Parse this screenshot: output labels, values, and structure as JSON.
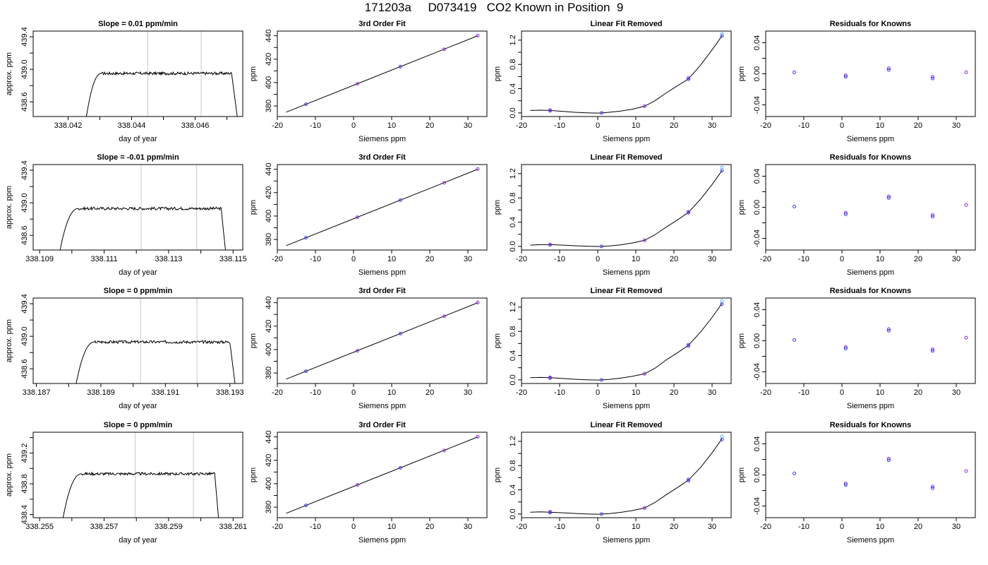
{
  "title": "171203a     D073419   CO2 Known in Position  9",
  "colors": {
    "trace": "#000000",
    "guide": "#c8c8c8",
    "point_a": "#3b3bff",
    "point_b": "#8a2be2",
    "point_c": "#56b4e9",
    "fit_line": "#000000"
  },
  "chart_data": [
    {
      "type": "line",
      "title": "Slope =  0.01  ppm/min",
      "xlabel": "day of year",
      "ylabel": "approx. ppm",
      "xlim": [
        338.0409,
        338.0475
      ],
      "ylim": [
        438.42,
        439.47
      ],
      "xticks": [
        338.042,
        338.043,
        338.044,
        338.045,
        338.046,
        338.047
      ],
      "xtick_labels": [
        "338.042",
        "",
        "338.044",
        "",
        "338.046",
        ""
      ],
      "yticks": [
        438.6,
        438.8,
        439.0,
        439.2,
        439.4
      ],
      "ytick_labels": [
        "438.6",
        "",
        "439.0",
        "",
        "439.4"
      ],
      "vlines": [
        338.04451,
        338.04619
      ],
      "rise_start": 338.04255,
      "plateau_start": 338.04305,
      "plateau_end": 338.04715,
      "fall_end": 338.04735,
      "plateau_level": 438.95,
      "bottom": 438.35
    },
    {
      "type": "line",
      "title": "Slope =  -0.01  ppm/min",
      "xlabel": "day of year",
      "ylabel": "approx. ppm",
      "xlim": [
        338.1088,
        338.1153
      ],
      "ylim": [
        438.42,
        439.47
      ],
      "xticks": [
        338.109,
        338.11,
        338.111,
        338.112,
        338.113,
        338.114,
        338.115
      ],
      "xtick_labels": [
        "338.109",
        "",
        "338.111",
        "",
        "338.113",
        "",
        "338.115"
      ],
      "yticks": [
        438.6,
        438.8,
        439.0,
        439.2,
        439.4
      ],
      "ytick_labels": [
        "438.6",
        "",
        "439.0",
        "",
        "439.4"
      ],
      "vlines": [
        338.11215,
        338.11387
      ],
      "rise_start": 338.1096,
      "plateau_start": 338.1102,
      "plateau_end": 338.11463,
      "fall_end": 338.11478,
      "plateau_level": 438.93,
      "bottom": 438.35
    },
    {
      "type": "line",
      "title": "Slope =  0  ppm/min",
      "xlabel": "day of year",
      "ylabel": "approx. ppm",
      "xlim": [
        338.1869,
        338.1934
      ],
      "ylim": [
        438.42,
        439.47
      ],
      "xticks": [
        338.187,
        338.188,
        338.189,
        338.19,
        338.191,
        338.192,
        338.193
      ],
      "xtick_labels": [
        "338.187",
        "",
        "338.189",
        "",
        "338.191",
        "",
        "338.193"
      ],
      "yticks": [
        438.6,
        438.8,
        439.0,
        439.2,
        439.4
      ],
      "ytick_labels": [
        "438.6",
        "",
        "439.0",
        "",
        "439.4"
      ],
      "vlines": [
        338.19023,
        338.19198
      ],
      "rise_start": 338.1882,
      "plateau_start": 338.1888,
      "plateau_end": 338.193,
      "fall_end": 338.19318,
      "plateau_level": 438.93,
      "bottom": 438.35
    },
    {
      "type": "line",
      "title": "Slope =  0  ppm/min",
      "xlabel": "day of year",
      "ylabel": "approx. ppm",
      "xlim": [
        338.2548,
        338.2613
      ],
      "ylim": [
        438.36,
        439.47
      ],
      "xticks": [
        338.255,
        338.256,
        338.257,
        338.258,
        338.259,
        338.26,
        338.261
      ],
      "xtick_labels": [
        "338.255",
        "",
        "338.257",
        "",
        "338.259",
        "",
        "338.261"
      ],
      "yticks": [
        438.4,
        438.6,
        438.8,
        439.0,
        439.2,
        439.4
      ],
      "ytick_labels": [
        "438.4",
        "",
        "438.8",
        "",
        "439.2",
        ""
      ],
      "vlines": [
        338.25796,
        338.25977
      ],
      "rise_start": 338.2557,
      "plateau_start": 338.2563,
      "plateau_end": 338.26043,
      "fall_end": 338.26056,
      "plateau_level": 438.93,
      "bottom": 438.3
    },
    {
      "type": "scatter",
      "title": "3rd Order Fit",
      "xlabel": "Siemens ppm",
      "ylabel": "ppm",
      "xlim": [
        -20,
        35
      ],
      "ylim": [
        371,
        444
      ],
      "xticks": [
        -20,
        -10,
        0,
        10,
        20,
        30
      ],
      "xtick_labels": [
        "-20",
        "-10",
        "0",
        "10",
        "20",
        "30"
      ],
      "yticks": [
        380,
        390,
        400,
        410,
        420,
        430,
        440
      ],
      "ytick_labels": [
        "380",
        "",
        "400",
        "",
        "420",
        "",
        "440"
      ],
      "points": {
        "x": [
          -12.5,
          1.0,
          12.3,
          23.8,
          32.6
        ],
        "y": [
          381.5,
          399.0,
          413.6,
          428.4,
          440.2
        ]
      },
      "fit": {
        "slope": 1.2975,
        "intercept": 397.7,
        "x0": -17.7,
        "x1": 32.6
      }
    },
    {
      "type": "scatter",
      "title": "3rd Order Fit",
      "xlabel": "Siemens ppm",
      "ylabel": "ppm",
      "xlim": [
        -20,
        35
      ],
      "ylim": [
        371,
        444
      ],
      "xticks": [
        -20,
        -10,
        0,
        10,
        20,
        30
      ],
      "xtick_labels": [
        "-20",
        "-10",
        "0",
        "10",
        "20",
        "30"
      ],
      "yticks": [
        380,
        390,
        400,
        410,
        420,
        430,
        440
      ],
      "ytick_labels": [
        "380",
        "",
        "400",
        "",
        "420",
        "",
        "440"
      ],
      "points": {
        "x": [
          -12.5,
          1.0,
          12.3,
          23.8,
          32.6
        ],
        "y": [
          381.5,
          399.0,
          413.6,
          428.4,
          440.2
        ]
      },
      "fit": {
        "slope": 1.2975,
        "intercept": 397.7,
        "x0": -17.7,
        "x1": 32.6
      }
    },
    {
      "type": "scatter",
      "title": "3rd Order Fit",
      "xlabel": "Siemens ppm",
      "ylabel": "ppm",
      "xlim": [
        -20,
        35
      ],
      "ylim": [
        371,
        444
      ],
      "xticks": [
        -20,
        -10,
        0,
        10,
        20,
        30
      ],
      "xtick_labels": [
        "-20",
        "-10",
        "0",
        "10",
        "20",
        "30"
      ],
      "yticks": [
        380,
        390,
        400,
        410,
        420,
        430,
        440
      ],
      "ytick_labels": [
        "380",
        "",
        "400",
        "",
        "420",
        "",
        "440"
      ],
      "points": {
        "x": [
          -12.5,
          1.0,
          12.3,
          23.8,
          32.6
        ],
        "y": [
          381.5,
          399.0,
          413.6,
          428.4,
          440.2
        ]
      },
      "fit": {
        "slope": 1.2975,
        "intercept": 397.7,
        "x0": -17.7,
        "x1": 32.6
      }
    },
    {
      "type": "scatter",
      "title": "3rd Order Fit",
      "xlabel": "Siemens ppm",
      "ylabel": "ppm",
      "xlim": [
        -20,
        35
      ],
      "ylim": [
        371,
        444
      ],
      "xticks": [
        -20,
        -10,
        0,
        10,
        20,
        30
      ],
      "xtick_labels": [
        "-20",
        "-10",
        "0",
        "10",
        "20",
        "30"
      ],
      "yticks": [
        380,
        390,
        400,
        410,
        420,
        430,
        440
      ],
      "ytick_labels": [
        "380",
        "",
        "400",
        "",
        "420",
        "",
        "440"
      ],
      "points": {
        "x": [
          -12.5,
          1.0,
          12.3,
          23.8,
          32.6
        ],
        "y": [
          381.5,
          399.0,
          413.6,
          428.4,
          440.2
        ]
      },
      "fit": {
        "slope": 1.2975,
        "intercept": 397.7,
        "x0": -17.7,
        "x1": 32.6
      }
    },
    {
      "type": "scatter",
      "title": "Linear Fit Removed",
      "xlabel": "Siemens ppm",
      "ylabel": "ppm",
      "xlim": [
        -20,
        35
      ],
      "ylim": [
        -0.06,
        1.35
      ],
      "xticks": [
        -20,
        -10,
        0,
        10,
        20,
        30
      ],
      "xtick_labels": [
        "-20",
        "-10",
        "0",
        "10",
        "20",
        "30"
      ],
      "yticks": [
        0.0,
        0.2,
        0.4,
        0.6,
        0.8,
        1.0,
        1.2
      ],
      "ytick_labels": [
        "0.0",
        "",
        "0.4",
        "",
        "0.8",
        "",
        "1.2"
      ],
      "points": {
        "x": [
          -12.5,
          -12.5,
          1.0,
          12.3,
          23.8,
          23.8,
          32.6,
          32.6
        ],
        "y": [
          0.035,
          0.045,
          0.0,
          0.11,
          0.555,
          0.575,
          1.27,
          1.3
        ]
      },
      "curve": {
        "x": [
          -17.7,
          -15,
          -12.5,
          -9,
          -6,
          -3,
          0,
          1,
          3,
          6,
          9,
          12.3,
          15,
          18,
          21,
          23.8,
          27,
          30,
          32.6
        ],
        "y": [
          0.04,
          0.045,
          0.04,
          0.025,
          0.01,
          0.002,
          -0.003,
          0.0,
          0.01,
          0.03,
          0.06,
          0.11,
          0.2,
          0.33,
          0.45,
          0.56,
          0.79,
          1.04,
          1.27
        ]
      }
    },
    {
      "type": "scatter",
      "title": "Linear Fit Removed",
      "xlabel": "Siemens ppm",
      "ylabel": "ppm",
      "xlim": [
        -20,
        35
      ],
      "ylim": [
        -0.06,
        1.35
      ],
      "xticks": [
        -20,
        -10,
        0,
        10,
        20,
        30
      ],
      "xtick_labels": [
        "-20",
        "-10",
        "0",
        "10",
        "20",
        "30"
      ],
      "yticks": [
        0.0,
        0.2,
        0.4,
        0.6,
        0.8,
        1.0,
        1.2
      ],
      "ytick_labels": [
        "0.0",
        "",
        "0.4",
        "",
        "0.8",
        "",
        "1.2"
      ],
      "points": {
        "x": [
          -12.5,
          -12.5,
          1.0,
          12.3,
          23.8,
          23.8,
          32.6,
          32.6
        ],
        "y": [
          0.025,
          0.03,
          0.0,
          0.1,
          0.555,
          0.57,
          1.25,
          1.3
        ]
      },
      "curve": {
        "x": [
          -17.7,
          -15,
          -12.5,
          -9,
          -6,
          -3,
          0,
          1,
          3,
          6,
          9,
          12.3,
          15,
          18,
          21,
          23.8,
          27,
          30,
          32.6
        ],
        "y": [
          0.02,
          0.028,
          0.028,
          0.02,
          0.01,
          0.003,
          -0.002,
          0.0,
          0.008,
          0.025,
          0.055,
          0.1,
          0.19,
          0.32,
          0.44,
          0.56,
          0.78,
          1.02,
          1.25
        ]
      }
    },
    {
      "type": "scatter",
      "title": "Linear Fit Removed",
      "xlabel": "Siemens ppm",
      "ylabel": "ppm",
      "xlim": [
        -20,
        35
      ],
      "ylim": [
        -0.06,
        1.35
      ],
      "xticks": [
        -20,
        -10,
        0,
        10,
        20,
        30
      ],
      "xtick_labels": [
        "-20",
        "-10",
        "0",
        "10",
        "20",
        "30"
      ],
      "yticks": [
        0.0,
        0.2,
        0.4,
        0.6,
        0.8,
        1.0,
        1.2
      ],
      "ytick_labels": [
        "0.0",
        "",
        "0.4",
        "",
        "0.8",
        "",
        "1.2"
      ],
      "points": {
        "x": [
          -12.5,
          -12.5,
          1.0,
          12.3,
          23.8,
          23.8,
          32.6,
          32.6
        ],
        "y": [
          0.03,
          0.04,
          0.0,
          0.1,
          0.56,
          0.58,
          1.25,
          1.3
        ]
      },
      "curve": {
        "x": [
          -17.7,
          -15,
          -12.5,
          -9,
          -6,
          -3,
          0,
          1,
          3,
          6,
          9,
          12.3,
          15,
          18,
          21,
          23.8,
          27,
          30,
          32.6
        ],
        "y": [
          0.035,
          0.04,
          0.035,
          0.022,
          0.01,
          0.002,
          -0.003,
          0.0,
          0.008,
          0.028,
          0.058,
          0.1,
          0.19,
          0.33,
          0.45,
          0.57,
          0.79,
          1.03,
          1.26
        ]
      }
    },
    {
      "type": "scatter",
      "title": "Linear Fit Removed",
      "xlabel": "Siemens ppm",
      "ylabel": "ppm",
      "xlim": [
        -20,
        35
      ],
      "ylim": [
        -0.06,
        1.35
      ],
      "xticks": [
        -20,
        -10,
        0,
        10,
        20,
        30
      ],
      "xtick_labels": [
        "-20",
        "-10",
        "0",
        "10",
        "20",
        "30"
      ],
      "yticks": [
        0.0,
        0.2,
        0.4,
        0.6,
        0.8,
        1.0,
        1.2
      ],
      "ytick_labels": [
        "0.0",
        "",
        "0.4",
        "",
        "0.8",
        "",
        "1.2"
      ],
      "points": {
        "x": [
          -12.5,
          -12.5,
          1.0,
          12.3,
          23.8,
          23.8,
          32.6,
          32.6
        ],
        "y": [
          0.025,
          0.035,
          0.0,
          0.1,
          0.55,
          0.57,
          1.23,
          1.28
        ]
      },
      "curve": {
        "x": [
          -17.7,
          -15,
          -12.5,
          -9,
          -6,
          -3,
          0,
          1,
          3,
          6,
          9,
          12.3,
          15,
          18,
          21,
          23.8,
          27,
          30,
          32.6
        ],
        "y": [
          0.03,
          0.035,
          0.03,
          0.02,
          0.01,
          0.002,
          -0.003,
          0.0,
          0.008,
          0.027,
          0.056,
          0.1,
          0.19,
          0.32,
          0.44,
          0.56,
          0.77,
          1.01,
          1.24
        ]
      }
    },
    {
      "type": "scatter",
      "title": "Residuals for Knowns",
      "xlabel": "Siemens ppm",
      "ylabel": "ppm",
      "xlim": [
        -20,
        35
      ],
      "ylim": [
        -0.055,
        0.055
      ],
      "xticks": [
        -20,
        -10,
        0,
        10,
        20,
        30
      ],
      "xtick_labels": [
        "-20",
        "-10",
        "0",
        "10",
        "20",
        "30"
      ],
      "yticks": [
        -0.04,
        -0.02,
        0.0,
        0.02,
        0.04
      ],
      "ytick_labels": [
        "-0.04",
        "",
        "0.00",
        "",
        "0.04"
      ],
      "points": {
        "x": [
          -12.5,
          1.0,
          1.0,
          12.3,
          12.3,
          23.8,
          23.8,
          32.6
        ],
        "y": [
          0.002,
          -0.002,
          -0.004,
          0.007,
          0.005,
          -0.004,
          -0.006,
          0.002
        ]
      }
    },
    {
      "type": "scatter",
      "title": "Residuals for Knowns",
      "xlabel": "Siemens ppm",
      "ylabel": "ppm",
      "xlim": [
        -20,
        35
      ],
      "ylim": [
        -0.055,
        0.055
      ],
      "xticks": [
        -20,
        -10,
        0,
        10,
        20,
        30
      ],
      "xtick_labels": [
        "-20",
        "-10",
        "0",
        "10",
        "20",
        "30"
      ],
      "yticks": [
        -0.04,
        -0.02,
        0.0,
        0.02,
        0.04
      ],
      "ytick_labels": [
        "-0.04",
        "",
        "0.00",
        "",
        "0.04"
      ],
      "points": {
        "x": [
          -12.5,
          1.0,
          1.0,
          12.3,
          12.3,
          23.8,
          23.8,
          32.6
        ],
        "y": [
          0.001,
          -0.007,
          -0.009,
          0.014,
          0.012,
          -0.01,
          -0.012,
          0.003
        ]
      }
    },
    {
      "type": "scatter",
      "title": "Residuals for Knowns",
      "xlabel": "Siemens ppm",
      "ylabel": "ppm",
      "xlim": [
        -20,
        35
      ],
      "ylim": [
        -0.055,
        0.055
      ],
      "xticks": [
        -20,
        -10,
        0,
        10,
        20,
        30
      ],
      "xtick_labels": [
        "-20",
        "-10",
        "0",
        "10",
        "20",
        "30"
      ],
      "yticks": [
        -0.04,
        -0.02,
        0.0,
        0.02,
        0.04
      ],
      "ytick_labels": [
        "-0.04",
        "",
        "0.00",
        "",
        "0.04"
      ],
      "points": {
        "x": [
          -12.5,
          1.0,
          1.0,
          12.3,
          12.3,
          23.8,
          23.8,
          32.6
        ],
        "y": [
          0.001,
          -0.008,
          -0.01,
          0.015,
          0.013,
          -0.011,
          -0.013,
          0.004
        ]
      }
    },
    {
      "type": "scatter",
      "title": "Residuals for Knowns",
      "xlabel": "Siemens ppm",
      "ylabel": "ppm",
      "xlim": [
        -20,
        35
      ],
      "ylim": [
        -0.055,
        0.055
      ],
      "xticks": [
        -20,
        -10,
        0,
        10,
        20,
        30
      ],
      "xtick_labels": [
        "-20",
        "-10",
        "0",
        "10",
        "20",
        "30"
      ],
      "yticks": [
        -0.04,
        -0.02,
        0.0,
        0.02,
        0.04
      ],
      "ytick_labels": [
        "-0.04",
        "",
        "0.00",
        "",
        "0.04"
      ],
      "points": {
        "x": [
          -12.5,
          1.0,
          1.0,
          12.3,
          12.3,
          23.8,
          23.8,
          32.6
        ],
        "y": [
          0.002,
          -0.011,
          -0.013,
          0.021,
          0.019,
          -0.015,
          -0.017,
          0.005
        ]
      }
    }
  ]
}
